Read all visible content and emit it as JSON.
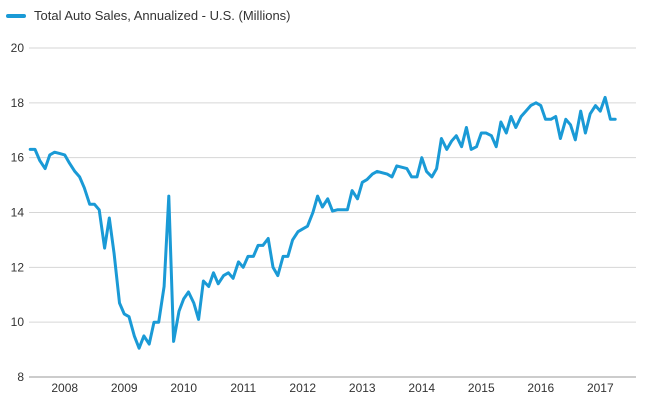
{
  "chart_data": {
    "type": "line",
    "title": "",
    "xlabel": "",
    "ylabel": "",
    "legend_position": "top-left",
    "grid": "horizontal",
    "ylim": [
      8,
      20
    ],
    "yticks": [
      8,
      10,
      12,
      14,
      16,
      18,
      20
    ],
    "xlim": [
      2007.4,
      2017.6
    ],
    "xticks": [
      {
        "value": 2008.0,
        "label": "2008"
      },
      {
        "value": 2009.0,
        "label": "2009"
      },
      {
        "value": 2010.0,
        "label": "2010"
      },
      {
        "value": 2011.0,
        "label": "2011"
      },
      {
        "value": 2012.0,
        "label": "2012"
      },
      {
        "value": 2013.0,
        "label": "2013"
      },
      {
        "value": 2014.0,
        "label": "2014"
      },
      {
        "value": 2015.0,
        "label": "2015"
      },
      {
        "value": 2016.0,
        "label": "2016"
      },
      {
        "value": 2017.0,
        "label": "2017"
      }
    ],
    "series": [
      {
        "name": "Total Auto Sales, Annualized - U.S. (Millions)",
        "color": "#1a9ad6",
        "x": [
          2007.42,
          2007.5,
          2007.58,
          2007.67,
          2007.75,
          2007.83,
          2007.92,
          2008.0,
          2008.08,
          2008.17,
          2008.25,
          2008.33,
          2008.42,
          2008.5,
          2008.58,
          2008.67,
          2008.75,
          2008.83,
          2008.92,
          2009.0,
          2009.08,
          2009.17,
          2009.25,
          2009.33,
          2009.42,
          2009.5,
          2009.58,
          2009.67,
          2009.75,
          2009.83,
          2009.92,
          2010.0,
          2010.08,
          2010.17,
          2010.25,
          2010.33,
          2010.42,
          2010.5,
          2010.58,
          2010.67,
          2010.75,
          2010.83,
          2010.92,
          2011.0,
          2011.08,
          2011.17,
          2011.25,
          2011.33,
          2011.42,
          2011.5,
          2011.58,
          2011.67,
          2011.75,
          2011.83,
          2011.92,
          2012.0,
          2012.08,
          2012.17,
          2012.25,
          2012.33,
          2012.42,
          2012.5,
          2012.58,
          2012.67,
          2012.75,
          2012.83,
          2012.92,
          2013.0,
          2013.08,
          2013.17,
          2013.25,
          2013.33,
          2013.42,
          2013.5,
          2013.58,
          2013.67,
          2013.75,
          2013.83,
          2013.92,
          2014.0,
          2014.08,
          2014.17,
          2014.25,
          2014.33,
          2014.42,
          2014.5,
          2014.58,
          2014.67,
          2014.75,
          2014.83,
          2014.92,
          2015.0,
          2015.08,
          2015.17,
          2015.25,
          2015.33,
          2015.42,
          2015.5,
          2015.58,
          2015.67,
          2015.75,
          2015.83,
          2015.92,
          2016.0,
          2016.08,
          2016.17,
          2016.25,
          2016.33,
          2016.42,
          2016.5,
          2016.58,
          2016.67,
          2016.75,
          2016.83,
          2016.92,
          2017.0,
          2017.08,
          2017.17,
          2017.25
        ],
        "values": [
          16.3,
          16.3,
          15.9,
          15.6,
          16.1,
          16.2,
          16.15,
          16.1,
          15.8,
          15.5,
          15.3,
          14.9,
          14.3,
          14.3,
          14.1,
          12.7,
          13.8,
          12.5,
          10.7,
          10.3,
          10.2,
          9.5,
          9.05,
          9.5,
          9.2,
          10.0,
          10.0,
          11.3,
          14.6,
          9.3,
          10.4,
          10.85,
          11.1,
          10.7,
          10.1,
          11.5,
          11.3,
          11.8,
          11.4,
          11.7,
          11.8,
          11.6,
          12.2,
          12.0,
          12.4,
          12.4,
          12.8,
          12.8,
          13.05,
          12.0,
          11.7,
          12.4,
          12.4,
          13.0,
          13.3,
          13.4,
          13.5,
          14.0,
          14.6,
          14.2,
          14.5,
          14.05,
          14.1,
          14.1,
          14.1,
          14.8,
          14.5,
          15.1,
          15.2,
          15.4,
          15.5,
          15.45,
          15.4,
          15.3,
          15.7,
          15.65,
          15.6,
          15.3,
          15.3,
          16.0,
          15.5,
          15.3,
          15.6,
          16.7,
          16.3,
          16.6,
          16.8,
          16.4,
          17.1,
          16.3,
          16.4,
          16.9,
          16.9,
          16.8,
          16.4,
          17.3,
          16.9,
          17.5,
          17.1,
          17.5,
          17.7,
          17.9,
          18.0,
          17.9,
          17.4,
          17.4,
          17.5,
          16.7,
          17.4,
          17.2,
          16.65,
          17.7,
          16.9,
          17.6,
          17.9,
          17.7,
          18.2,
          17.4,
          17.4
        ]
      }
    ]
  }
}
